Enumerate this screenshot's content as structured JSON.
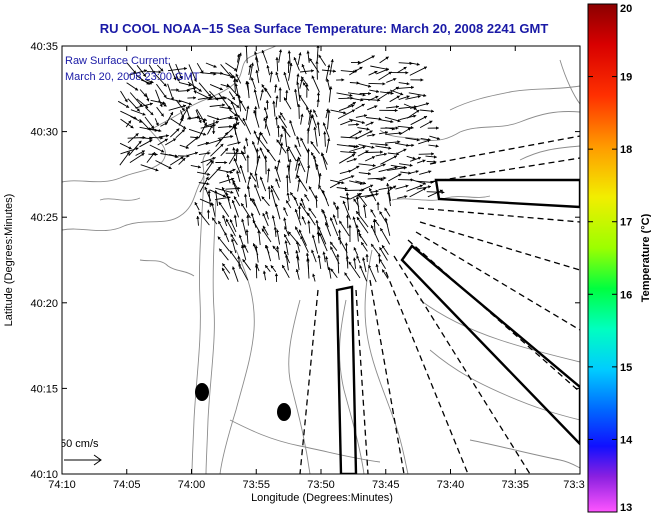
{
  "chart_data": {
    "type": "map",
    "title": "RU COOL  NOAA−15  Sea Surface Temperature:  March 20, 2008 2241 GMT",
    "annotation": {
      "line1": "Raw Surface Current:",
      "line2": "March 20, 2008 23:00 GMT"
    },
    "xlabel": "Longitude (Degrees:Minutes)",
    "ylabel": "Latitude (Degrees:Minutes)",
    "x_ticks": [
      "74:10",
      "74:05",
      "74:00",
      "73:55",
      "73:50",
      "73:45",
      "73:40",
      "73:35",
      "73:3"
    ],
    "y_ticks": [
      "40:35",
      "40:30",
      "40:25",
      "40:20",
      "40:15",
      "40:10"
    ],
    "xlim_minutes_west": [
      70,
      30
    ],
    "ylim_minutes": [
      10,
      35
    ],
    "scale_label": "50 cm/s",
    "colorbar": {
      "label": "Temperature (°C)",
      "ticks": [
        "20",
        "19",
        "18",
        "17",
        "16",
        "15",
        "14",
        "13"
      ],
      "range": [
        13,
        20
      ]
    },
    "colors": {
      "title": "#1a1aa6",
      "contour": "#888888",
      "vector": "#000000"
    }
  }
}
